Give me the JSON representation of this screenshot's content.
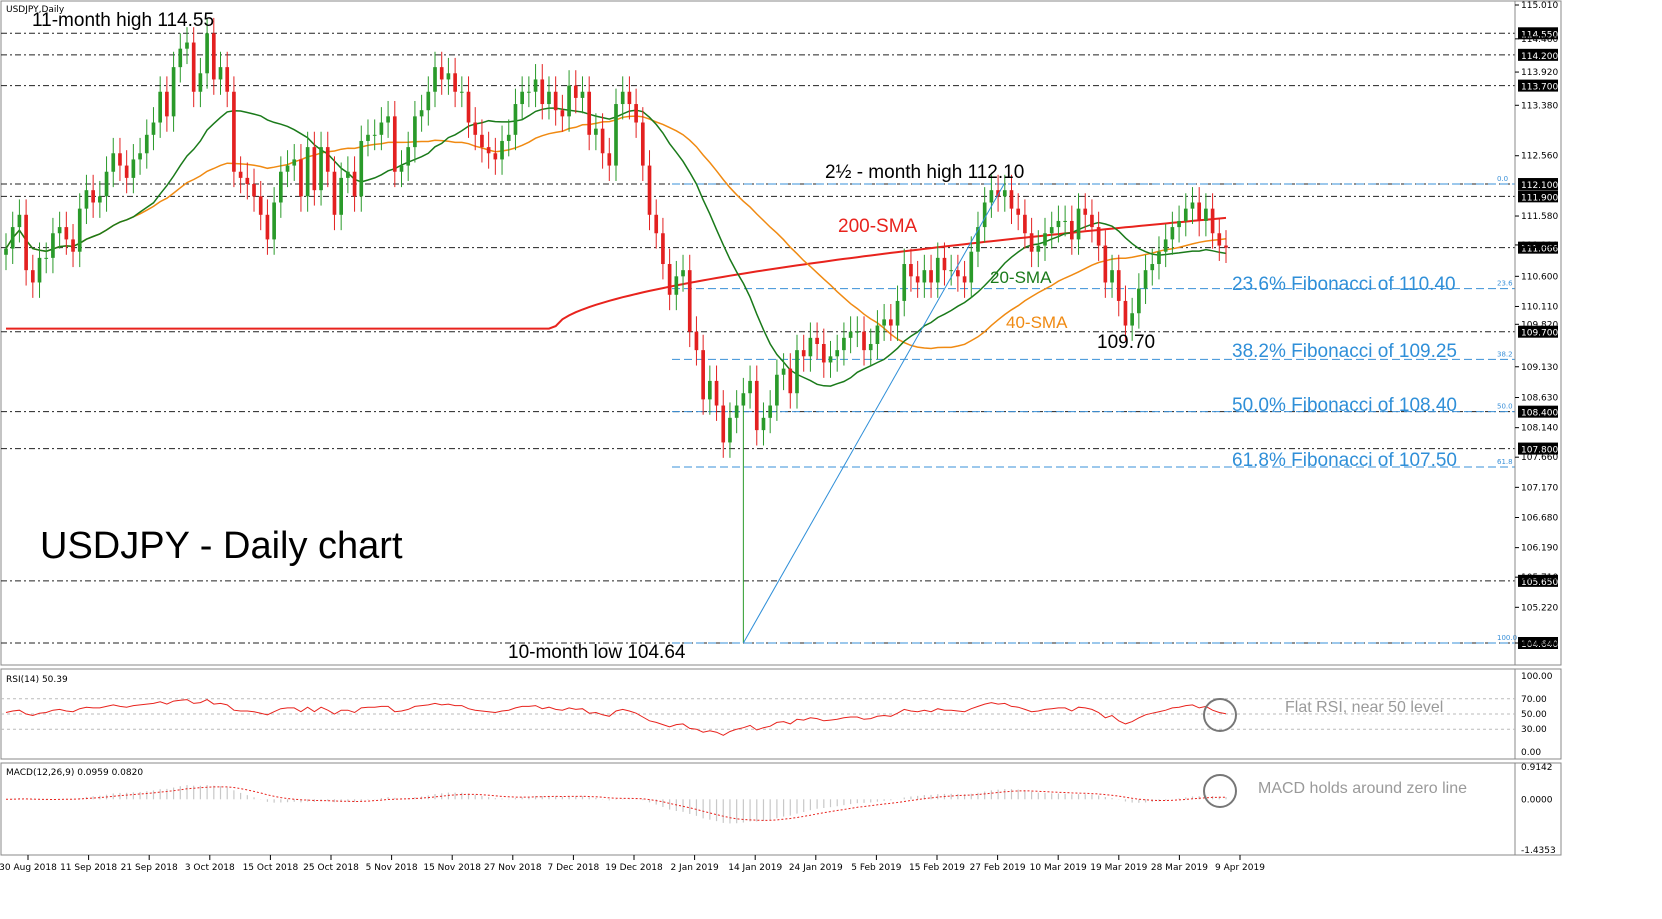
{
  "chart_data": {
    "type": "candlestick",
    "symbol_label": "USDJPY,Daily",
    "title": "USDJPY - Daily chart",
    "price_axis": {
      "ylim": [
        104.22,
        115.01
      ],
      "ticks": [
        "115.010",
        "114.460",
        "113.920",
        "113.380",
        "112.560",
        "111.580",
        "111.110",
        "110.600",
        "110.110",
        "109.820",
        "109.130",
        "108.630",
        "108.140",
        "107.660",
        "107.170",
        "106.680",
        "106.190",
        "105.710",
        "105.220",
        "104.640"
      ]
    },
    "date_labels": [
      "30 Aug 2018",
      "11 Sep 2018",
      "21 Sep 2018",
      "3 Oct 2018",
      "15 Oct 2018",
      "25 Oct 2018",
      "5 Nov 2018",
      "15 Nov 2018",
      "27 Nov 2018",
      "7 Dec 2018",
      "19 Dec 2018",
      "2 Jan 2019",
      "14 Jan 2019",
      "24 Jan 2019",
      "5 Feb 2019",
      "15 Feb 2019",
      "27 Feb 2019",
      "10 Mar 2019",
      "19 Mar 2019",
      "28 Mar 2019",
      "9 Apr 2019"
    ],
    "horizontal_levels": [
      "114.550",
      "114.200",
      "113.700",
      "112.100",
      "111.900",
      "111.066",
      "109.700",
      "108.400",
      "107.800",
      "105.650",
      "104.640"
    ],
    "fib_levels": [
      {
        "ratio_label": "0.0",
        "price": 112.1,
        "text": ""
      },
      {
        "ratio_label": "23.6",
        "price": 110.4,
        "text": "23.6% Fibonacci of 110.40"
      },
      {
        "ratio_label": "38.2",
        "price": 109.25,
        "text": "38.2% Fibonacci of 109.25"
      },
      {
        "ratio_label": "50.0",
        "price": 108.4,
        "text": "50.0% Fibonacci of 108.40"
      },
      {
        "ratio_label": "61.8",
        "price": 107.5,
        "text": "61.8% Fibonacci of 107.50"
      },
      {
        "ratio_label": "100.0",
        "price": 104.64,
        "text": ""
      }
    ],
    "annotations": {
      "high_11m": "11-month high 114.55",
      "high_2_5m": "2½ - month high 112.10",
      "low_10m": "10-month low 104.64",
      "low_109": "109.70",
      "sma200": "200-SMA",
      "sma20": "20-SMA",
      "sma40": "40-SMA"
    },
    "close": [
      111.05,
      111.4,
      111.6,
      110.7,
      110.5,
      110.9,
      110.9,
      111.3,
      111.4,
      111.2,
      111.0,
      111.7,
      112.0,
      111.8,
      111.9,
      112.3,
      112.6,
      112.4,
      112.2,
      112.5,
      112.6,
      112.9,
      113.1,
      113.6,
      113.2,
      114.0,
      114.3,
      114.4,
      113.6,
      113.9,
      114.55,
      113.8,
      114.0,
      113.6,
      112.3,
      112.2,
      112.1,
      111.9,
      111.6,
      111.2,
      111.8,
      112.3,
      112.4,
      112.5,
      111.9,
      112.7,
      112.0,
      112.7,
      112.3,
      111.6,
      112.2,
      112.3,
      111.9,
      112.8,
      112.9,
      112.9,
      113.1,
      113.2,
      112.3,
      112.4,
      112.7,
      113.2,
      113.3,
      113.6,
      114.0,
      113.8,
      113.9,
      113.6,
      113.6,
      113.1,
      112.9,
      112.7,
      112.6,
      112.5,
      112.8,
      112.9,
      113.4,
      113.6,
      113.6,
      113.8,
      113.4,
      113.6,
      113.3,
      113.2,
      113.7,
      113.5,
      113.6,
      112.9,
      113.0,
      112.6,
      112.4,
      113.4,
      113.6,
      113.4,
      113.1,
      112.4,
      111.6,
      111.3,
      110.8,
      110.3,
      110.6,
      110.7,
      109.7,
      109.4,
      108.6,
      108.9,
      108.5,
      107.9,
      108.3,
      108.5,
      108.7,
      108.9,
      108.1,
      108.3,
      108.5,
      109.0,
      109.1,
      108.7,
      109.4,
      109.3,
      109.6,
      109.5,
      109.2,
      109.3,
      109.4,
      109.6,
      109.7,
      109.7,
      109.4,
      109.5,
      109.8,
      109.9,
      109.8,
      110.2,
      110.8,
      110.6,
      110.5,
      110.7,
      110.5,
      110.9,
      110.7,
      110.7,
      110.6,
      110.5,
      111.0,
      111.4,
      111.8,
      112.0,
      111.9,
      112.0,
      111.7,
      111.6,
      111.3,
      111.0,
      111.1,
      111.3,
      111.4,
      111.5,
      111.5,
      111.2,
      111.7,
      111.6,
      111.4,
      111.1,
      110.5,
      110.7,
      110.2,
      109.8,
      110.0,
      110.4,
      110.7,
      110.8,
      111.0,
      111.2,
      111.4,
      111.5,
      111.7,
      111.8,
      111.5,
      111.7,
      111.3,
      111.1,
      111.066
    ],
    "rsi": {
      "label": "RSI(14) 50.39",
      "ticks": [
        "100.00",
        "70.00",
        "50.00",
        "30.00",
        "0.00"
      ],
      "values": [
        52,
        54,
        55,
        50,
        48,
        51,
        52,
        55,
        56,
        54,
        53,
        57,
        59,
        58,
        58,
        60,
        62,
        60,
        59,
        61,
        62,
        63,
        64,
        66,
        63,
        67,
        68,
        69,
        64,
        65,
        69,
        63,
        64,
        62,
        55,
        54,
        54,
        53,
        51,
        49,
        53,
        57,
        58,
        58,
        53,
        59,
        53,
        59,
        55,
        50,
        55,
        55,
        52,
        58,
        59,
        59,
        60,
        60,
        53,
        54,
        56,
        60,
        61,
        62,
        64,
        62,
        63,
        61,
        61,
        57,
        55,
        54,
        53,
        52,
        54,
        55,
        58,
        60,
        60,
        61,
        57,
        59,
        56,
        55,
        58,
        56,
        57,
        51,
        52,
        49,
        47,
        54,
        56,
        54,
        51,
        46,
        41,
        39,
        36,
        33,
        36,
        37,
        31,
        30,
        26,
        28,
        26,
        22,
        27,
        30,
        32,
        35,
        29,
        32,
        34,
        39,
        40,
        37,
        43,
        42,
        45,
        44,
        41,
        42,
        43,
        45,
        46,
        46,
        43,
        44,
        47,
        48,
        47,
        51,
        56,
        54,
        53,
        55,
        53,
        57,
        55,
        55,
        54,
        53,
        57,
        60,
        63,
        65,
        63,
        64,
        60,
        59,
        56,
        53,
        54,
        56,
        57,
        58,
        58,
        54,
        59,
        58,
        56,
        52,
        45,
        48,
        41,
        37,
        40,
        45,
        49,
        51,
        53,
        55,
        58,
        59,
        61,
        62,
        58,
        60,
        55,
        52,
        50.39
      ],
      "note": "Flat RSI, near 50 level"
    },
    "macd": {
      "label": "MACD(12,26,9) 0.0959 0.0820",
      "ticks": [
        "0.9142",
        "0.0000",
        "-1.4353"
      ],
      "note": "MACD holds around zero line"
    }
  }
}
